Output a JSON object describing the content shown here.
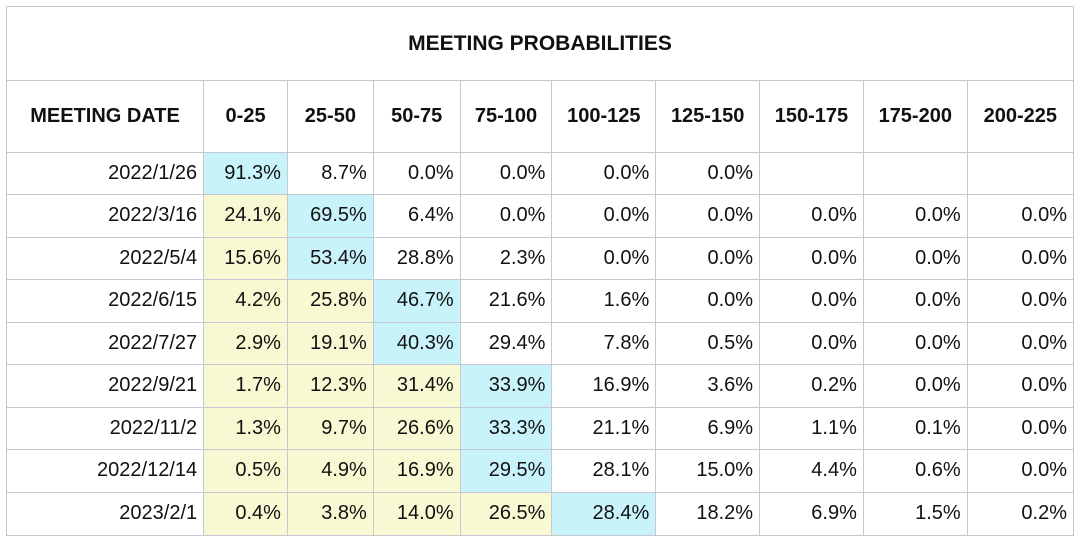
{
  "chart_data": {
    "type": "table",
    "title": "MEETING PROBABILITIES",
    "columns": [
      "MEETING DATE",
      "0-25",
      "25-50",
      "50-75",
      "75-100",
      "100-125",
      "125-150",
      "150-175",
      "175-200",
      "200-225"
    ],
    "rows": [
      {
        "date": "2022/1/26",
        "values": [
          "91.3%",
          "8.7%",
          "0.0%",
          "0.0%",
          "0.0%",
          "0.0%",
          "",
          "",
          ""
        ]
      },
      {
        "date": "2022/3/16",
        "values": [
          "24.1%",
          "69.5%",
          "6.4%",
          "0.0%",
          "0.0%",
          "0.0%",
          "0.0%",
          "0.0%",
          "0.0%"
        ]
      },
      {
        "date": "2022/5/4",
        "values": [
          "15.6%",
          "53.4%",
          "28.8%",
          "2.3%",
          "0.0%",
          "0.0%",
          "0.0%",
          "0.0%",
          "0.0%"
        ]
      },
      {
        "date": "2022/6/15",
        "values": [
          "4.2%",
          "25.8%",
          "46.7%",
          "21.6%",
          "1.6%",
          "0.0%",
          "0.0%",
          "0.0%",
          "0.0%"
        ]
      },
      {
        "date": "2022/7/27",
        "values": [
          "2.9%",
          "19.1%",
          "40.3%",
          "29.4%",
          "7.8%",
          "0.5%",
          "0.0%",
          "0.0%",
          "0.0%"
        ]
      },
      {
        "date": "2022/9/21",
        "values": [
          "1.7%",
          "12.3%",
          "31.4%",
          "33.9%",
          "16.9%",
          "3.6%",
          "0.2%",
          "0.0%",
          "0.0%"
        ]
      },
      {
        "date": "2022/11/2",
        "values": [
          "1.3%",
          "9.7%",
          "26.6%",
          "33.3%",
          "21.1%",
          "6.9%",
          "1.1%",
          "0.1%",
          "0.0%"
        ]
      },
      {
        "date": "2022/12/14",
        "values": [
          "0.5%",
          "4.9%",
          "16.9%",
          "29.5%",
          "28.1%",
          "15.0%",
          "4.4%",
          "0.6%",
          "0.0%"
        ]
      },
      {
        "date": "2023/2/1",
        "values": [
          "0.4%",
          "3.8%",
          "14.0%",
          "26.5%",
          "28.4%",
          "18.2%",
          "6.9%",
          "1.5%",
          "0.2%"
        ]
      }
    ],
    "highlight": {
      "mode_color": "#c8f3fb",
      "below_mode_color": "#f8f8d3",
      "mode_column_index": [
        0,
        1,
        1,
        2,
        2,
        3,
        3,
        3,
        4
      ]
    }
  }
}
